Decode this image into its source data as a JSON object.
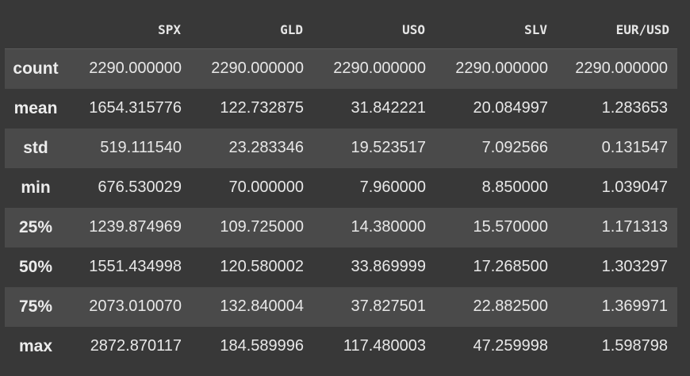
{
  "table": {
    "columns": [
      "SPX",
      "GLD",
      "USO",
      "SLV",
      "EUR/USD"
    ],
    "rows": [
      {
        "label": "count",
        "values": [
          "2290.000000",
          "2290.000000",
          "2290.000000",
          "2290.000000",
          "2290.000000"
        ]
      },
      {
        "label": "mean",
        "values": [
          "1654.315776",
          "122.732875",
          "31.842221",
          "20.084997",
          "1.283653"
        ]
      },
      {
        "label": "std",
        "values": [
          "519.111540",
          "23.283346",
          "19.523517",
          "7.092566",
          "0.131547"
        ]
      },
      {
        "label": "min",
        "values": [
          "676.530029",
          "70.000000",
          "7.960000",
          "8.850000",
          "1.039047"
        ]
      },
      {
        "label": "25%",
        "values": [
          "1239.874969",
          "109.725000",
          "14.380000",
          "15.570000",
          "1.171313"
        ]
      },
      {
        "label": "50%",
        "values": [
          "1551.434998",
          "120.580002",
          "33.869999",
          "17.268500",
          "1.303297"
        ]
      },
      {
        "label": "75%",
        "values": [
          "2073.010070",
          "132.840004",
          "37.827501",
          "22.882500",
          "1.369971"
        ]
      },
      {
        "label": "max",
        "values": [
          "2872.870117",
          "184.589996",
          "117.480003",
          "47.259998",
          "1.598798"
        ]
      }
    ]
  },
  "colors": {
    "background": "#383838",
    "striped_row": "#4a4a4a",
    "text": "#e8e8e8"
  }
}
